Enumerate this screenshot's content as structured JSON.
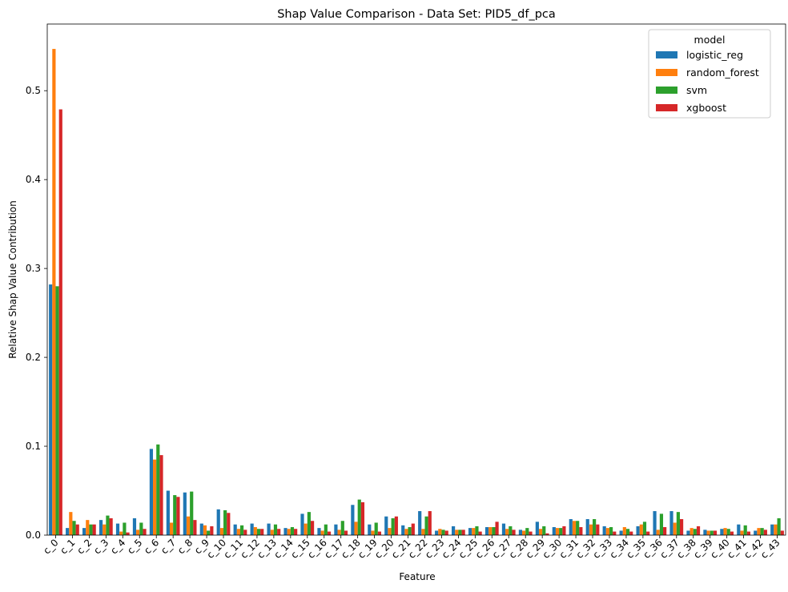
{
  "chart_data": {
    "type": "bar",
    "title": "Shap Value Comparison - Data Set: PID5_df_pca",
    "xlabel": "Feature",
    "ylabel": "Relative Shap Value Contribution",
    "ylim": [
      0,
      0.575
    ],
    "yticks": [
      0.0,
      0.1,
      0.2,
      0.3,
      0.4,
      0.5
    ],
    "legend": {
      "title": "model",
      "placement": "top-right"
    },
    "categories": [
      "c_0",
      "c_1",
      "c_2",
      "c_3",
      "c_4",
      "c_5",
      "c_6",
      "c_7",
      "c_8",
      "c_9",
      "c_10",
      "c_11",
      "c_12",
      "c_13",
      "c_14",
      "c_15",
      "c_16",
      "c_17",
      "c_18",
      "c_19",
      "c_20",
      "c_21",
      "c_22",
      "c_23",
      "c_24",
      "c_25",
      "c_26",
      "c_27",
      "c_28",
      "c_29",
      "c_30",
      "c_31",
      "c_32",
      "c_33",
      "c_34",
      "c_35",
      "c_36",
      "c_37",
      "c_38",
      "c_39",
      "c_40",
      "c_41",
      "c_42",
      "c_43"
    ],
    "series": [
      {
        "name": "logistic_reg",
        "color": "#1f77b4",
        "values": [
          0.282,
          0.008,
          0.008,
          0.017,
          0.013,
          0.019,
          0.097,
          0.05,
          0.048,
          0.013,
          0.029,
          0.012,
          0.013,
          0.013,
          0.008,
          0.024,
          0.008,
          0.012,
          0.034,
          0.012,
          0.021,
          0.011,
          0.027,
          0.005,
          0.01,
          0.008,
          0.009,
          0.013,
          0.006,
          0.015,
          0.009,
          0.018,
          0.018,
          0.01,
          0.005,
          0.01,
          0.027,
          0.027,
          0.005,
          0.006,
          0.007,
          0.012,
          0.005,
          0.012
        ]
      },
      {
        "name": "random_forest",
        "color": "#ff7f0e",
        "values": [
          0.547,
          0.026,
          0.017,
          0.012,
          0.004,
          0.006,
          0.085,
          0.014,
          0.021,
          0.011,
          0.008,
          0.007,
          0.009,
          0.006,
          0.007,
          0.013,
          0.005,
          0.006,
          0.015,
          0.005,
          0.008,
          0.007,
          0.007,
          0.007,
          0.006,
          0.008,
          0.009,
          0.007,
          0.005,
          0.007,
          0.008,
          0.016,
          0.012,
          0.008,
          0.009,
          0.012,
          0.006,
          0.014,
          0.008,
          0.005,
          0.008,
          0.005,
          0.008,
          0.012
        ]
      },
      {
        "name": "svm",
        "color": "#2ca02c",
        "values": [
          0.28,
          0.016,
          0.012,
          0.022,
          0.014,
          0.014,
          0.102,
          0.045,
          0.049,
          0.005,
          0.028,
          0.011,
          0.007,
          0.012,
          0.009,
          0.026,
          0.012,
          0.016,
          0.04,
          0.014,
          0.019,
          0.009,
          0.021,
          0.006,
          0.006,
          0.01,
          0.009,
          0.01,
          0.008,
          0.01,
          0.008,
          0.016,
          0.018,
          0.009,
          0.007,
          0.015,
          0.024,
          0.026,
          0.007,
          0.005,
          0.007,
          0.011,
          0.008,
          0.019
        ]
      },
      {
        "name": "xgboost",
        "color": "#d62728",
        "values": [
          0.479,
          0.012,
          0.012,
          0.019,
          0.003,
          0.007,
          0.09,
          0.043,
          0.017,
          0.01,
          0.025,
          0.006,
          0.007,
          0.007,
          0.007,
          0.016,
          0.004,
          0.005,
          0.037,
          0.004,
          0.021,
          0.013,
          0.027,
          0.005,
          0.006,
          0.004,
          0.015,
          0.006,
          0.004,
          0.002,
          0.01,
          0.009,
          0.012,
          0.004,
          0.004,
          0.004,
          0.009,
          0.018,
          0.01,
          0.005,
          0.004,
          0.004,
          0.006,
          0.005
        ]
      }
    ]
  }
}
